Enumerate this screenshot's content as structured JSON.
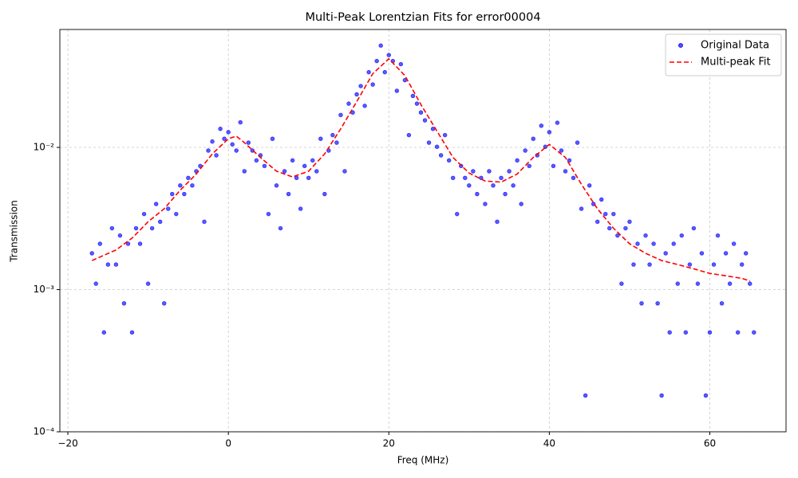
{
  "chart_data": {
    "type": "scatter",
    "title": "Multi-Peak Lorentzian Fits for error00004",
    "xlabel": "Freq (MHz)",
    "ylabel": "Transmission",
    "xlim": [
      -21,
      69.5
    ],
    "ylim": [
      0.0001,
      0.0675
    ],
    "yscale": "log",
    "grid": true,
    "legend": "upper right",
    "xticks": [
      {
        "value": -20,
        "label": "−20"
      },
      0,
      20,
      40,
      60
    ],
    "yticks": [
      {
        "value": 0.0001,
        "label": "10⁻⁴"
      },
      {
        "value": 0.001,
        "label": "10⁻³"
      },
      {
        "value": 0.01,
        "label": "10⁻²"
      }
    ],
    "series": [
      {
        "name": "Original Data",
        "type": "scatter",
        "color": "#0000ff",
        "x": [
          -17,
          -16.5,
          -16,
          -15.5,
          -15,
          -14.5,
          -14,
          -13.5,
          -13,
          -12.5,
          -12,
          -11.5,
          -11,
          -10.5,
          -10,
          -9.5,
          -9,
          -8.5,
          -8,
          -7.5,
          -7,
          -6.5,
          -6,
          -5.5,
          -5,
          -4.5,
          -4,
          -3.5,
          -3,
          -2.5,
          -2,
          -1.5,
          -1,
          -0.5,
          0,
          0.5,
          1,
          1.5,
          2,
          2.5,
          3,
          3.5,
          4,
          4.5,
          5,
          5.5,
          6,
          6.5,
          7,
          7.5,
          8,
          8.5,
          9,
          9.5,
          10,
          10.5,
          11,
          11.5,
          12,
          12.5,
          13,
          13.5,
          14,
          14.5,
          15,
          15.5,
          16,
          16.5,
          17,
          17.5,
          18,
          18.5,
          19,
          19.5,
          20,
          20.5,
          21,
          21.5,
          22,
          22.5,
          23,
          23.5,
          24,
          24.5,
          25,
          25.5,
          26,
          26.5,
          27,
          27.5,
          28,
          28.5,
          29,
          29.5,
          30,
          30.5,
          31,
          31.5,
          32,
          32.5,
          33,
          33.5,
          34,
          34.5,
          35,
          35.5,
          36,
          36.5,
          37,
          37.5,
          38,
          38.5,
          39,
          39.5,
          40,
          40.5,
          41,
          41.5,
          42,
          42.5,
          43,
          43.5,
          44,
          44.5,
          45,
          45.5,
          46,
          46.5,
          47,
          47.5,
          48,
          48.5,
          49,
          49.5,
          50,
          50.5,
          51,
          51.5,
          52,
          52.5,
          53,
          53.5,
          54,
          54.5,
          55,
          55.5,
          56,
          56.5,
          57,
          57.5,
          58,
          58.5,
          59,
          59.5,
          60,
          60.5,
          61,
          61.5,
          62,
          62.5,
          63,
          63.5,
          64,
          64.5,
          65,
          65.5
        ],
        "values": [
          0.0018,
          0.0011,
          0.0021,
          0.0005,
          0.0015,
          0.0027,
          0.0015,
          0.0024,
          0.0008,
          0.0021,
          0.0005,
          0.0027,
          0.0021,
          0.0034,
          0.0011,
          0.0027,
          0.004,
          0.003,
          0.0008,
          0.0037,
          0.0047,
          0.0034,
          0.0054,
          0.0047,
          0.0061,
          0.0054,
          0.0068,
          0.0074,
          0.003,
          0.0095,
          0.011,
          0.0088,
          0.0135,
          0.0115,
          0.0128,
          0.0105,
          0.0095,
          0.015,
          0.0068,
          0.0108,
          0.0095,
          0.0081,
          0.0088,
          0.0074,
          0.0034,
          0.0115,
          0.0054,
          0.0027,
          0.0068,
          0.0047,
          0.0081,
          0.0061,
          0.0037,
          0.0074,
          0.0061,
          0.0081,
          0.0068,
          0.0115,
          0.0047,
          0.0095,
          0.0122,
          0.0108,
          0.0169,
          0.0068,
          0.0203,
          0.0176,
          0.0236,
          0.027,
          0.0196,
          0.0338,
          0.0277,
          0.0405,
          0.052,
          0.0338,
          0.0446,
          0.0405,
          0.025,
          0.0385,
          0.0297,
          0.0122,
          0.023,
          0.0203,
          0.0176,
          0.0155,
          0.0108,
          0.0135,
          0.0101,
          0.0088,
          0.0122,
          0.0081,
          0.0061,
          0.0034,
          0.0074,
          0.0061,
          0.0054,
          0.0068,
          0.0047,
          0.0061,
          0.004,
          0.0068,
          0.0054,
          0.003,
          0.0061,
          0.0047,
          0.0068,
          0.0054,
          0.0081,
          0.004,
          0.0095,
          0.0074,
          0.0115,
          0.0088,
          0.0142,
          0.0101,
          0.0128,
          0.0074,
          0.0149,
          0.0095,
          0.0068,
          0.0081,
          0.0061,
          0.0108,
          0.0037,
          0.00018,
          0.0054,
          0.004,
          0.003,
          0.0043,
          0.0034,
          0.0027,
          0.0034,
          0.0024,
          0.0011,
          0.0027,
          0.003,
          0.0015,
          0.0021,
          0.0008,
          0.0024,
          0.0015,
          0.0021,
          0.0008,
          0.00018,
          0.0018,
          0.0005,
          0.0021,
          0.0011,
          0.0024,
          0.0005,
          0.0015,
          0.0027,
          0.0011,
          0.0018,
          0.00018,
          0.0005,
          0.0015,
          0.0024,
          0.0008,
          0.0018,
          0.0011,
          0.0021,
          0.0005,
          0.0015,
          0.0018,
          0.0011,
          0.0005
        ]
      },
      {
        "name": "Multi-peak Fit",
        "type": "line",
        "color": "#ff0000",
        "x": [
          -17,
          -14,
          -12,
          -10,
          -8,
          -6,
          -4,
          -2,
          0,
          1,
          2,
          4,
          6,
          8,
          10,
          12,
          14,
          16,
          18,
          20,
          22,
          24,
          26,
          28,
          30,
          32,
          34,
          36,
          38,
          40,
          42,
          44,
          46,
          48,
          50,
          52,
          54,
          56,
          58,
          60,
          62,
          64,
          65
        ],
        "values": [
          0.0016,
          0.0019,
          0.0023,
          0.003,
          0.0037,
          0.005,
          0.0065,
          0.009,
          0.0115,
          0.012,
          0.0108,
          0.0085,
          0.0068,
          0.0062,
          0.0068,
          0.009,
          0.0135,
          0.021,
          0.033,
          0.042,
          0.032,
          0.02,
          0.013,
          0.0085,
          0.0066,
          0.0058,
          0.0057,
          0.0065,
          0.0085,
          0.0105,
          0.0085,
          0.0055,
          0.0037,
          0.0027,
          0.0021,
          0.0018,
          0.0016,
          0.0015,
          0.0014,
          0.0013,
          0.00125,
          0.0012,
          0.00115
        ]
      }
    ]
  }
}
